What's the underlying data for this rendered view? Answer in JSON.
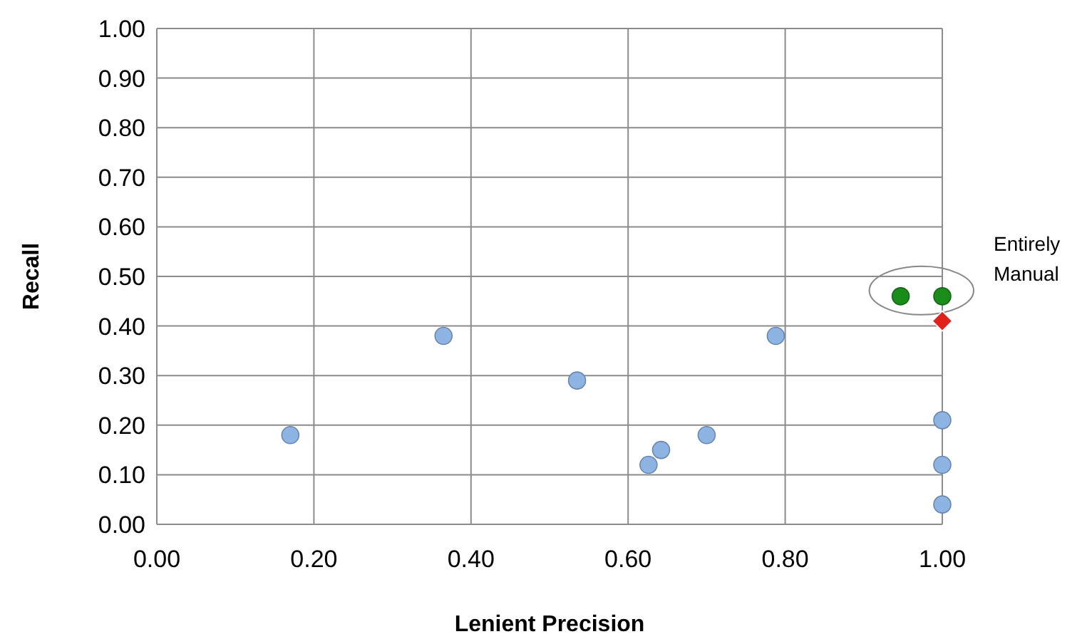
{
  "chart_data": {
    "type": "scatter",
    "xlabel": "Lenient Precision",
    "ylabel": "Recall",
    "xlim": [
      0,
      1
    ],
    "ylim": [
      0,
      1
    ],
    "xticks": [
      {
        "value": 0,
        "label": "0.00"
      },
      {
        "value": 0.2,
        "label": "0.20"
      },
      {
        "value": 0.4,
        "label": "0.40"
      },
      {
        "value": 0.6,
        "label": "0.60"
      },
      {
        "value": 0.8,
        "label": "0.80"
      },
      {
        "value": 1,
        "label": "1.00"
      }
    ],
    "yticks": [
      {
        "value": 0,
        "label": "0.00"
      },
      {
        "value": 0.1,
        "label": "0.10"
      },
      {
        "value": 0.2,
        "label": "0.20"
      },
      {
        "value": 0.3,
        "label": "0.30"
      },
      {
        "value": 0.4,
        "label": "0.40"
      },
      {
        "value": 0.5,
        "label": "0.50"
      },
      {
        "value": 0.6,
        "label": "0.60"
      },
      {
        "value": 0.7,
        "label": "0.70"
      },
      {
        "value": 0.8,
        "label": "0.80"
      },
      {
        "value": 0.9,
        "label": "0.90"
      },
      {
        "value": 1,
        "label": "1.00"
      }
    ],
    "grid": true,
    "series": [
      {
        "color": "#8db4e2",
        "marker": "circle",
        "x": [
          0.17,
          0.365,
          0.535,
          0.626,
          0.642,
          0.7,
          0.788,
          1.0,
          1.0,
          1.0
        ],
        "values": [
          0.18,
          0.38,
          0.29,
          0.12,
          0.15,
          0.18,
          0.38,
          0.21,
          0.12,
          0.04
        ]
      },
      {
        "color": "#1a8c1a",
        "marker": "circle",
        "x": [
          0.947,
          1.0
        ],
        "values": [
          0.46,
          0.46
        ]
      },
      {
        "color": "#e0211c",
        "marker": "diamond",
        "x": [
          1.0
        ],
        "values": [
          0.41
        ]
      }
    ],
    "annotations": [
      {
        "text": "Entirely Manual",
        "x": 1.0,
        "y": 0.46
      }
    ]
  }
}
